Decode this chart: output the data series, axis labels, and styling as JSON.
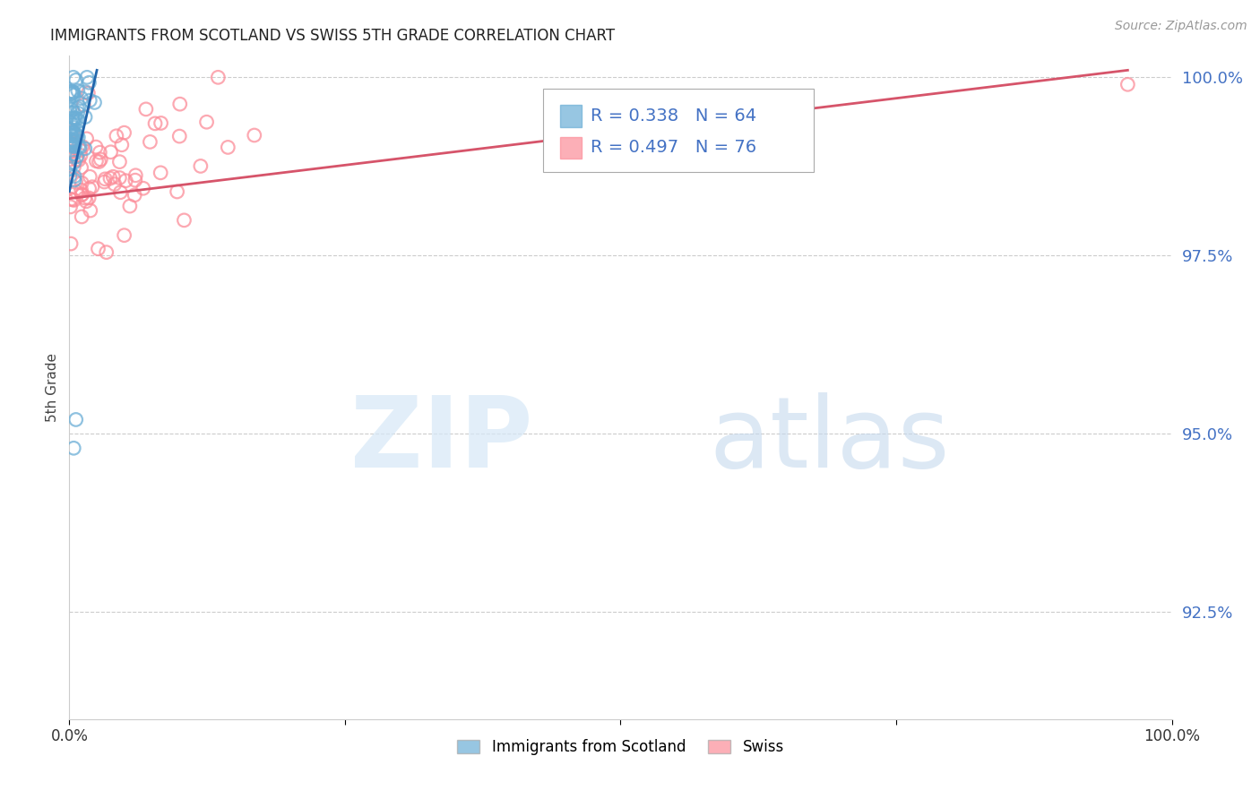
{
  "title": "IMMIGRANTS FROM SCOTLAND VS SWISS 5TH GRADE CORRELATION CHART",
  "source": "Source: ZipAtlas.com",
  "ylabel": "5th Grade",
  "legend_scotland": "Immigrants from Scotland",
  "legend_swiss": "Swiss",
  "scotland_R": 0.338,
  "scotland_N": 64,
  "swiss_R": 0.497,
  "swiss_N": 76,
  "scotland_color": "#6baed6",
  "swiss_color": "#fc8d99",
  "scotland_line_color": "#2166ac",
  "swiss_line_color": "#d6546a",
  "xlim": [
    0.0,
    1.0
  ],
  "ylim": [
    0.91,
    1.003
  ],
  "yticks": [
    1.0,
    0.975,
    0.95,
    0.925
  ],
  "ytick_labels": [
    "100.0%",
    "97.5%",
    "95.0%",
    "92.5%"
  ],
  "xtick_vals": [
    0.0,
    0.25,
    0.5,
    0.75,
    1.0
  ],
  "xtick_labels": [
    "0.0%",
    "",
    "",
    "",
    "100.0%"
  ],
  "background_color": "#ffffff",
  "grid_color": "#cccccc",
  "title_color": "#222222",
  "ylabel_color": "#444444",
  "tick_color": "#4472c4",
  "source_color": "#999999"
}
